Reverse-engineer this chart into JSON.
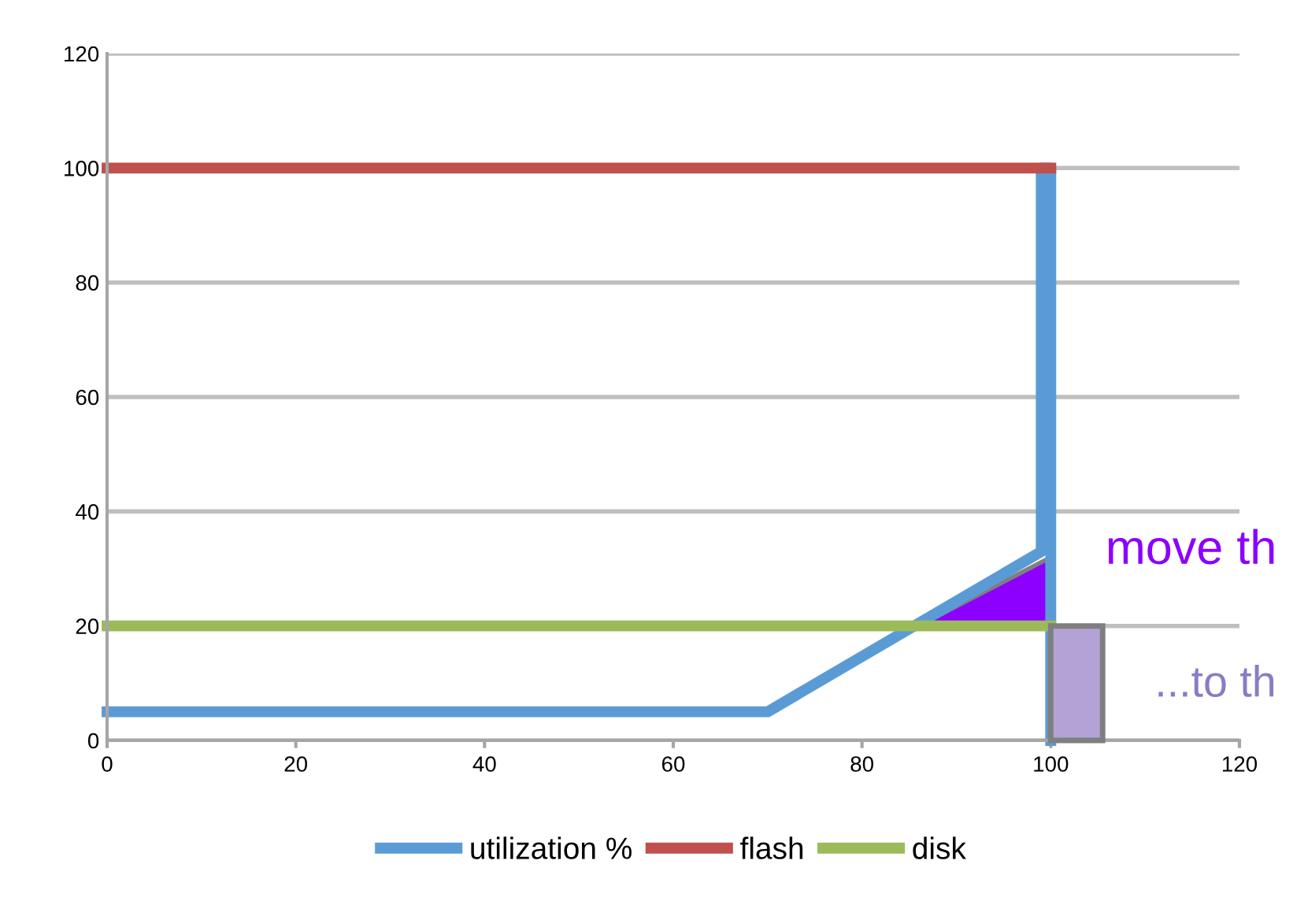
{
  "chart_data": {
    "type": "line",
    "series": [
      {
        "name": "utilization %",
        "color": "#5b9bd5",
        "x": [
          0,
          70,
          99,
          99,
          100,
          100
        ],
        "values": [
          5,
          5,
          33,
          100,
          100,
          0
        ]
      },
      {
        "name": "flash",
        "color": "#c0504d",
        "x": [
          0,
          100
        ],
        "values": [
          100,
          100
        ]
      },
      {
        "name": "disk",
        "color": "#9bbb59",
        "x": [
          0,
          100
        ],
        "values": [
          20,
          20
        ]
      },
      {
        "type": "bar",
        "color": "#b3a2d6",
        "x": [
          102.75
        ],
        "values": [
          20
        ]
      }
    ],
    "xlim": [
      0,
      120
    ],
    "xticks": [
      0,
      20,
      40,
      60,
      80,
      100,
      120
    ],
    "ylim": [
      0,
      120
    ],
    "yticks": [
      0,
      20,
      40,
      60,
      80,
      100,
      120
    ],
    "grid": "y",
    "legend": "bottom",
    "marker": "none",
    "line_style": "solid",
    "annotations": [
      "move th",
      "...to th"
    ]
  }
}
